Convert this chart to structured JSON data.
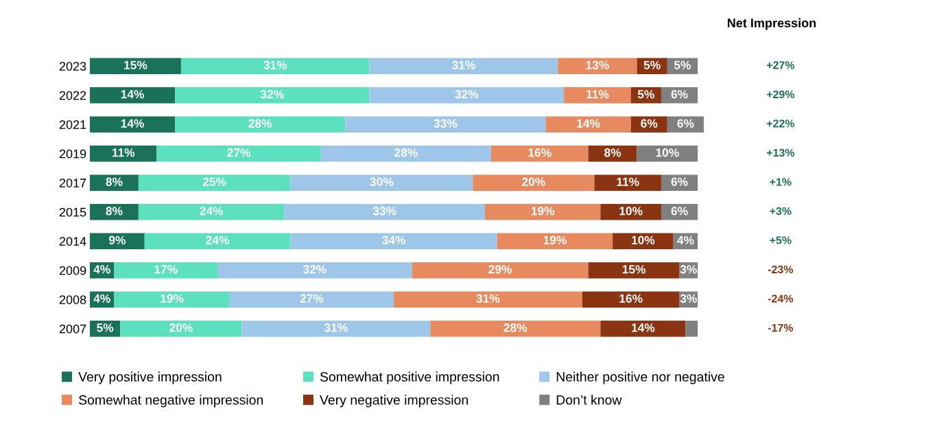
{
  "chart_data": {
    "type": "bar",
    "orientation": "horizontal",
    "stacked": true,
    "categories": [
      "2023",
      "2022",
      "2021",
      "2019",
      "2017",
      "2015",
      "2014",
      "2009",
      "2008",
      "2007"
    ],
    "series": [
      {
        "name": "Very positive impression",
        "color": "#1a7259",
        "values": [
          15,
          14,
          14,
          11,
          8,
          8,
          9,
          4,
          4,
          5
        ],
        "value_labels": [
          "15%",
          "14%",
          "14%",
          "11%",
          "8%",
          "8%",
          "9%",
          "4%",
          "4%",
          "5%"
        ]
      },
      {
        "name": "Somewhat positive impression",
        "color": "#5ce0bd",
        "values": [
          31,
          32,
          28,
          27,
          25,
          24,
          24,
          17,
          19,
          20
        ],
        "value_labels": [
          "31%",
          "32%",
          "28%",
          "27%",
          "25%",
          "24%",
          "24%",
          "17%",
          "19%",
          "20%"
        ]
      },
      {
        "name": "Neither positive nor negative",
        "color": "#9dc6e8",
        "values": [
          31,
          32,
          33,
          28,
          30,
          33,
          34,
          32,
          27,
          31
        ],
        "value_labels": [
          "31%",
          "32%",
          "33%",
          "28%",
          "30%",
          "33%",
          "34%",
          "32%",
          "27%",
          "31%"
        ]
      },
      {
        "name": "Somewhat negative impression",
        "color": "#e88a60",
        "values": [
          13,
          11,
          14,
          16,
          20,
          19,
          19,
          29,
          31,
          28
        ],
        "value_labels": [
          "13%",
          "11%",
          "14%",
          "16%",
          "20%",
          "19%",
          "19%",
          "29%",
          "31%",
          "28%"
        ]
      },
      {
        "name": "Very negative impression",
        "color": "#8a3412",
        "values": [
          5,
          5,
          6,
          8,
          11,
          10,
          10,
          15,
          16,
          14
        ],
        "value_labels": [
          "5%",
          "5%",
          "6%",
          "8%",
          "11%",
          "10%",
          "10%",
          "15%",
          "16%",
          "14%"
        ]
      },
      {
        "name": "Don’t know",
        "color": "#808080",
        "values": [
          5,
          6,
          6,
          10,
          6,
          6,
          4,
          3,
          3,
          2
        ],
        "value_labels": [
          "5%",
          "6%",
          "6%",
          "10%",
          "6%",
          "6%",
          "4%",
          "3%",
          "3%",
          null
        ]
      }
    ],
    "annotations": [
      "Net Impression",
      "+27%",
      "+29%",
      "+22%",
      "+13%",
      "+1%",
      "+3%",
      "+5%",
      "-23%",
      "-24%",
      "-17%"
    ],
    "legend": "bottom",
    "grid": false
  }
}
